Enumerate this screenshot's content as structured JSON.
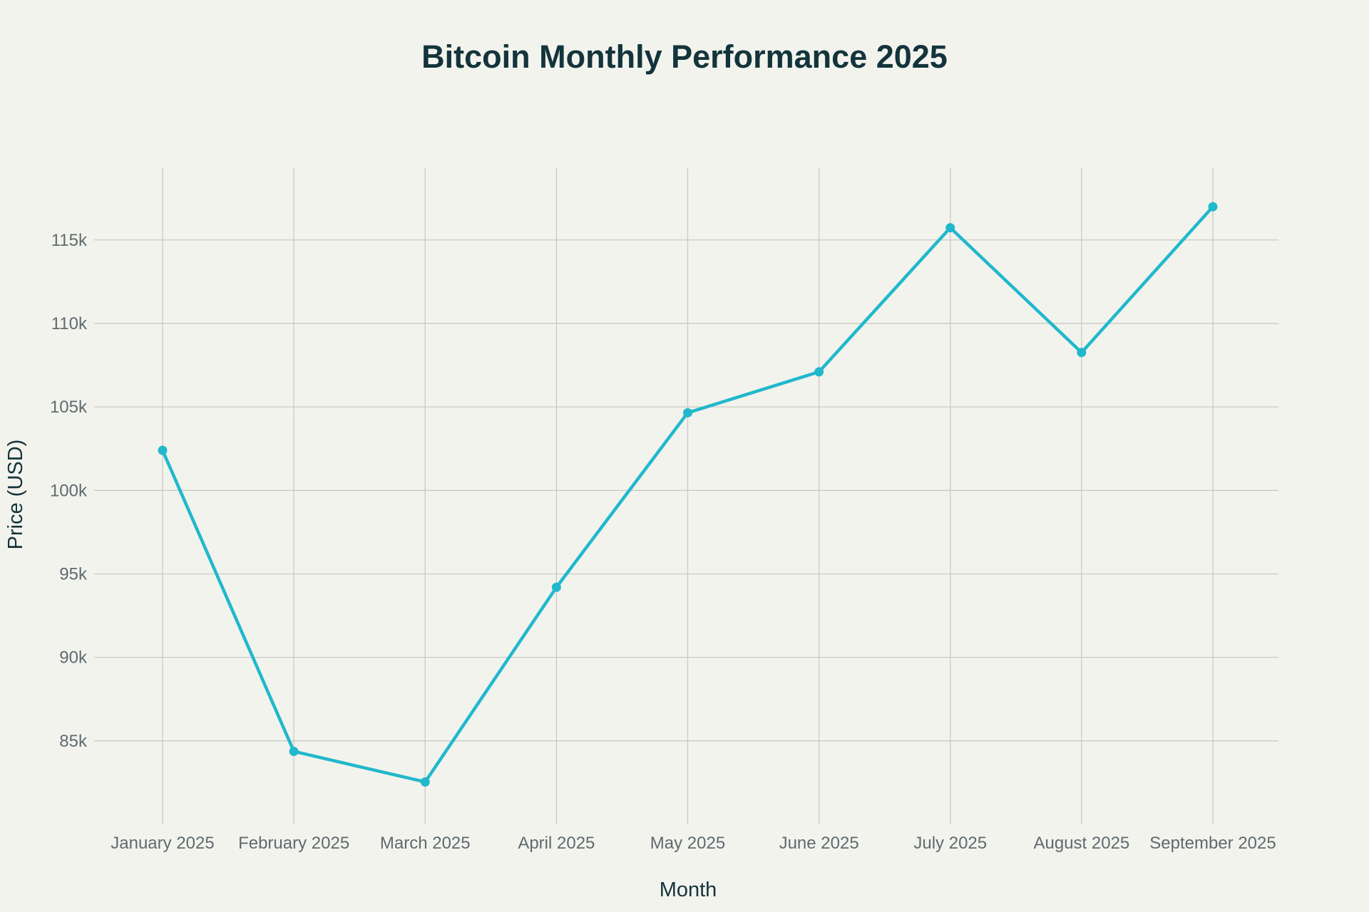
{
  "chart_data": {
    "type": "line",
    "title": "Bitcoin Monthly Performance 2025",
    "xlabel": "Month",
    "ylabel": "Price (USD)",
    "categories": [
      "January 2025",
      "February 2025",
      "March 2025",
      "April 2025",
      "May 2025",
      "June 2025",
      "July 2025",
      "August 2025",
      "September 2025"
    ],
    "series": [
      {
        "name": "Bitcoin",
        "values": [
          102400,
          84370,
          82540,
          94200,
          104650,
          107100,
          115730,
          108260,
          116990
        ]
      }
    ],
    "ylim": [
      80000,
      119300
    ],
    "yticks": [
      85000,
      90000,
      95000,
      100000,
      105000,
      110000,
      115000
    ],
    "ytick_labels": [
      "85k",
      "90k",
      "95k",
      "100k",
      "105k",
      "110k",
      "115k"
    ],
    "grid": true,
    "legend": "none",
    "colors": {
      "line": "#21b8cc",
      "background": "#f3f3ee"
    }
  }
}
